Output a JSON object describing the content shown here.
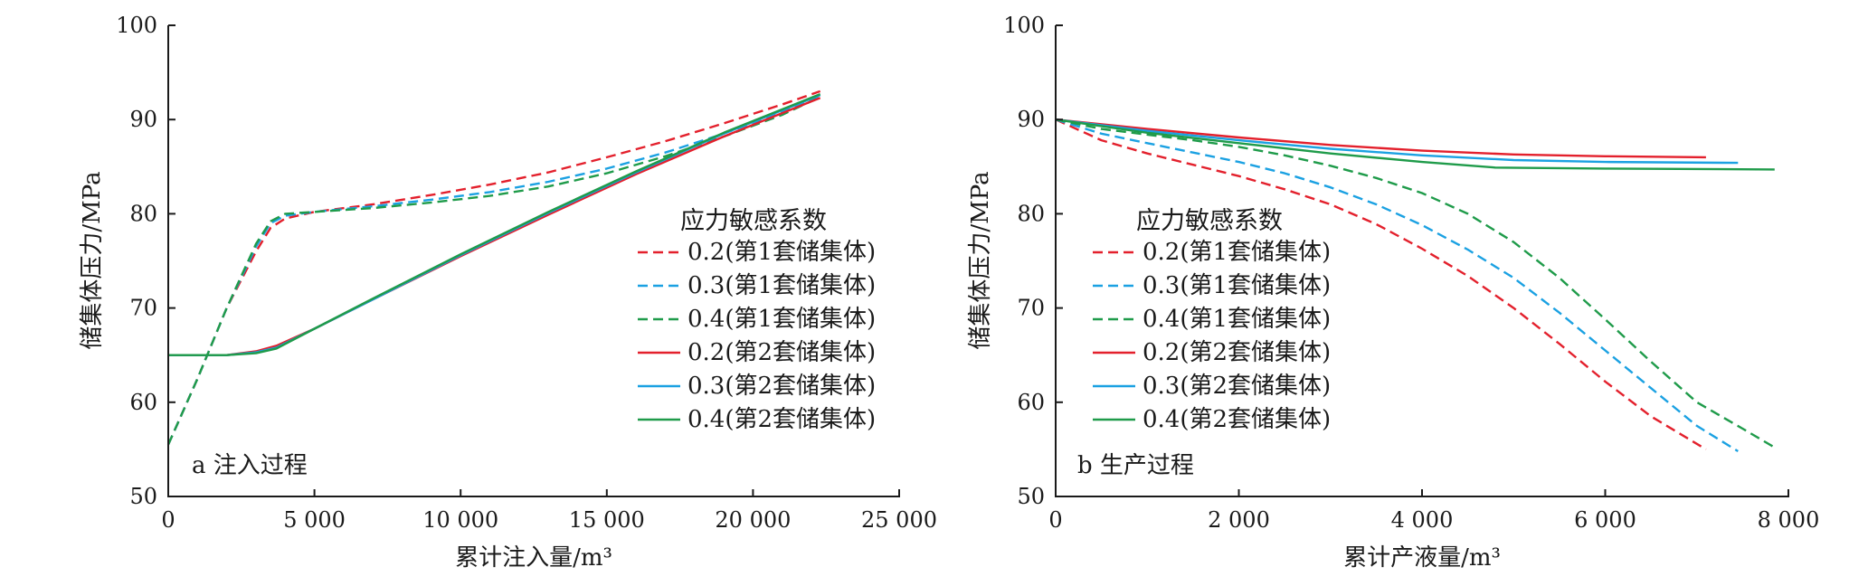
{
  "chart_data": [
    {
      "type": "line",
      "panel_label": "a 注入过程",
      "xlabel": "累计注入量/m³",
      "ylabel": "储集体压力/MPa",
      "xlim": [
        0,
        25000
      ],
      "ylim": [
        50,
        100
      ],
      "xticks": [
        0,
        5000,
        10000,
        15000,
        20000,
        25000
      ],
      "xtick_labels": [
        "0",
        "5 000",
        "10 000",
        "15 000",
        "20 000",
        "25 000"
      ],
      "yticks": [
        50,
        60,
        70,
        80,
        90,
        100
      ],
      "ytick_labels": [
        "50",
        "60",
        "70",
        "80",
        "90",
        "100"
      ],
      "legend_title": "应力敏感系数",
      "legend_position": "center-right",
      "grid": false,
      "series": [
        {
          "name": "0.2(第1套储集体)",
          "color": "#e3202c",
          "dash": true,
          "points": [
            [
              0,
              55.5
            ],
            [
              1000,
              62.5
            ],
            [
              2000,
              70
            ],
            [
              3000,
              76
            ],
            [
              3500,
              78.5
            ],
            [
              4000,
              79.5
            ],
            [
              5000,
              80.2
            ],
            [
              7000,
              81
            ],
            [
              9000,
              82
            ],
            [
              11000,
              83.1
            ],
            [
              13000,
              84.4
            ],
            [
              15000,
              86
            ],
            [
              17000,
              87.7
            ],
            [
              19000,
              89.6
            ],
            [
              21000,
              91.6
            ],
            [
              22300,
              93
            ]
          ]
        },
        {
          "name": "0.3(第1套储集体)",
          "color": "#1ba1e2",
          "dash": true,
          "points": [
            [
              0,
              55.5
            ],
            [
              1000,
              62.5
            ],
            [
              2000,
              70
            ],
            [
              3000,
              76.5
            ],
            [
              3500,
              79
            ],
            [
              4000,
              79.8
            ],
            [
              5000,
              80.2
            ],
            [
              7000,
              80.8
            ],
            [
              9000,
              81.5
            ],
            [
              11000,
              82.3
            ],
            [
              13000,
              83.4
            ],
            [
              15000,
              84.8
            ],
            [
              17000,
              86.5
            ],
            [
              19000,
              88.5
            ],
            [
              21000,
              90.8
            ],
            [
              22300,
              92.5
            ]
          ]
        },
        {
          "name": "0.4(第1套储集体)",
          "color": "#1f9b4a",
          "dash": true,
          "points": [
            [
              0,
              55.5
            ],
            [
              1000,
              62.5
            ],
            [
              2000,
              70
            ],
            [
              3000,
              76.8
            ],
            [
              3500,
              79.2
            ],
            [
              4000,
              80
            ],
            [
              5000,
              80.2
            ],
            [
              7000,
              80.6
            ],
            [
              9000,
              81.2
            ],
            [
              11000,
              81.9
            ],
            [
              13000,
              82.9
            ],
            [
              15000,
              84.3
            ],
            [
              17000,
              86.1
            ],
            [
              19000,
              88.2
            ],
            [
              21000,
              90.5
            ],
            [
              22300,
              92.4
            ]
          ]
        },
        {
          "name": "0.2(第2套储集体)",
          "color": "#e3202c",
          "dash": false,
          "points": [
            [
              0,
              65
            ],
            [
              2000,
              65
            ],
            [
              3000,
              65.4
            ],
            [
              3700,
              66
            ],
            [
              5000,
              67.8
            ],
            [
              7000,
              70.9
            ],
            [
              10000,
              75.5
            ],
            [
              13000,
              79.9
            ],
            [
              16000,
              84.2
            ],
            [
              19000,
              88.2
            ],
            [
              22300,
              92.3
            ]
          ]
        },
        {
          "name": "0.3(第2套储集体)",
          "color": "#1ba1e2",
          "dash": false,
          "points": [
            [
              0,
              65
            ],
            [
              2000,
              65
            ],
            [
              3000,
              65.3
            ],
            [
              3700,
              65.8
            ],
            [
              5000,
              67.8
            ],
            [
              7000,
              70.9
            ],
            [
              10000,
              75.6
            ],
            [
              13000,
              80.1
            ],
            [
              16000,
              84.4
            ],
            [
              19000,
              88.5
            ],
            [
              22300,
              92.6
            ]
          ]
        },
        {
          "name": "0.4(第2套储集体)",
          "color": "#1f9b4a",
          "dash": false,
          "points": [
            [
              0,
              65
            ],
            [
              2000,
              65
            ],
            [
              3000,
              65.2
            ],
            [
              3700,
              65.7
            ],
            [
              5000,
              67.8
            ],
            [
              7000,
              71
            ],
            [
              10000,
              75.7
            ],
            [
              13000,
              80.2
            ],
            [
              16000,
              84.5
            ],
            [
              19000,
              88.6
            ],
            [
              22300,
              92.7
            ]
          ]
        }
      ]
    },
    {
      "type": "line",
      "panel_label": "b 生产过程",
      "xlabel": "累计产液量/m³",
      "ylabel": "储集体压力/MPa",
      "xlim": [
        0,
        8000
      ],
      "ylim": [
        50,
        100
      ],
      "xticks": [
        0,
        2000,
        4000,
        6000,
        8000
      ],
      "xtick_labels": [
        "0",
        "2 000",
        "4 000",
        "6 000",
        "8 000"
      ],
      "yticks": [
        50,
        60,
        70,
        80,
        90,
        100
      ],
      "ytick_labels": [
        "50",
        "60",
        "70",
        "80",
        "90",
        "100"
      ],
      "legend_title": "应力敏感系数",
      "legend_position": "left-center",
      "grid": false,
      "series": [
        {
          "name": "0.2(第1套储集体)",
          "color": "#e3202c",
          "dash": true,
          "points": [
            [
              0,
              90
            ],
            [
              500,
              87.8
            ],
            [
              1000,
              86.4
            ],
            [
              1500,
              85.2
            ],
            [
              2000,
              84
            ],
            [
              2500,
              82.6
            ],
            [
              3000,
              81
            ],
            [
              3500,
              78.9
            ],
            [
              4000,
              76.3
            ],
            [
              4500,
              73.4
            ],
            [
              5000,
              70
            ],
            [
              5500,
              66.2
            ],
            [
              6000,
              62.2
            ],
            [
              6500,
              58.5
            ],
            [
              7100,
              55
            ]
          ]
        },
        {
          "name": "0.3(第1套储集体)",
          "color": "#1ba1e2",
          "dash": true,
          "points": [
            [
              0,
              90
            ],
            [
              500,
              88.5
            ],
            [
              1000,
              87.5
            ],
            [
              1500,
              86.5
            ],
            [
              2000,
              85.5
            ],
            [
              2500,
              84.3
            ],
            [
              3000,
              82.8
            ],
            [
              3500,
              81
            ],
            [
              4000,
              78.8
            ],
            [
              4500,
              76.2
            ],
            [
              5000,
              73.2
            ],
            [
              5500,
              69.5
            ],
            [
              6000,
              65.5
            ],
            [
              6500,
              61.5
            ],
            [
              7000,
              57.5
            ],
            [
              7450,
              54.8
            ]
          ]
        },
        {
          "name": "0.4(第1套储集体)",
          "color": "#1f9b4a",
          "dash": true,
          "points": [
            [
              0,
              90
            ],
            [
              500,
              89
            ],
            [
              1000,
              88.4
            ],
            [
              1500,
              87.8
            ],
            [
              2000,
              87.1
            ],
            [
              2500,
              86.2
            ],
            [
              3000,
              85.1
            ],
            [
              3500,
              83.8
            ],
            [
              4000,
              82.2
            ],
            [
              4500,
              80
            ],
            [
              5000,
              77
            ],
            [
              5500,
              73.2
            ],
            [
              6000,
              68.8
            ],
            [
              6500,
              64.3
            ],
            [
              7000,
              60
            ],
            [
              7500,
              57.2
            ],
            [
              7850,
              55.2
            ]
          ]
        },
        {
          "name": "0.2(第2套储集体)",
          "color": "#e3202c",
          "dash": false,
          "points": [
            [
              0,
              90
            ],
            [
              1000,
              89
            ],
            [
              2000,
              88.1
            ],
            [
              3000,
              87.3
            ],
            [
              4000,
              86.7
            ],
            [
              5000,
              86.3
            ],
            [
              6000,
              86.1
            ],
            [
              7100,
              86
            ]
          ]
        },
        {
          "name": "0.3(第2套储集体)",
          "color": "#1ba1e2",
          "dash": false,
          "points": [
            [
              0,
              90
            ],
            [
              1000,
              88.8
            ],
            [
              2000,
              87.8
            ],
            [
              3000,
              86.9
            ],
            [
              4000,
              86.2
            ],
            [
              5000,
              85.7
            ],
            [
              6000,
              85.5
            ],
            [
              7450,
              85.4
            ]
          ]
        },
        {
          "name": "0.4(第2套储集体)",
          "color": "#1f9b4a",
          "dash": false,
          "points": [
            [
              0,
              90
            ],
            [
              1000,
              88.6
            ],
            [
              2000,
              87.5
            ],
            [
              3000,
              86.4
            ],
            [
              4000,
              85.5
            ],
            [
              4800,
              84.9
            ],
            [
              6000,
              84.8
            ],
            [
              7850,
              84.7
            ]
          ]
        }
      ]
    }
  ]
}
